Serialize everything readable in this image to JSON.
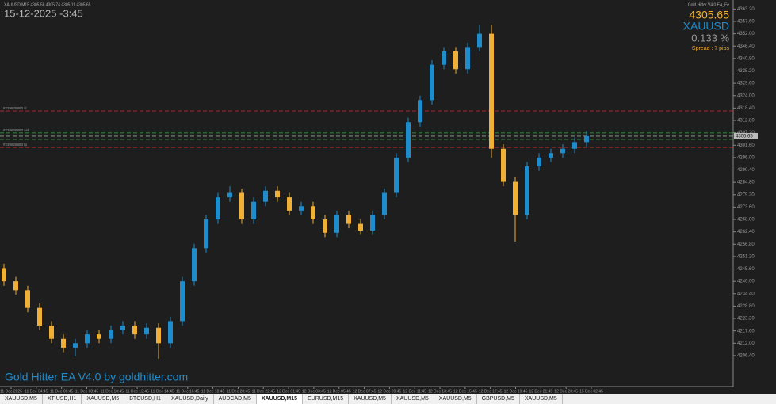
{
  "chart_data": {
    "type": "candlestick",
    "symbol_info": "XAUUSD,M15  4305.58 4305.74 4305.11 4305.65",
    "datetime": "15-12-2025 -3:45",
    "ea_name": "Gold Hitter V4.0 EA_Fe",
    "bid": 4305.65,
    "bid_label": "4305.65",
    "symbol": "XAUUSD",
    "change_pct": "0.133 %",
    "spread": "Spread : 7 pips",
    "watermark": "Gold Hitter EA V4.0 by goldhitter.com",
    "up_color": "#1f8ccc",
    "down_color": "#efb035",
    "ylim": [
      4192.4,
      4364.4
    ],
    "yticks": [
      {
        "value": 4206.4,
        "label": "4206.40"
      },
      {
        "value": 4212.0,
        "label": "4212.00"
      },
      {
        "value": 4217.6,
        "label": "4217.60"
      },
      {
        "value": 4223.2,
        "label": "4223.20"
      },
      {
        "value": 4228.8,
        "label": "4228.80"
      },
      {
        "value": 4234.4,
        "label": "4234.40"
      },
      {
        "value": 4240.0,
        "label": "4240.00"
      },
      {
        "value": 4245.6,
        "label": "4245.60"
      },
      {
        "value": 4251.2,
        "label": "4251.20"
      },
      {
        "value": 4256.8,
        "label": "4256.80"
      },
      {
        "value": 4262.4,
        "label": "4262.40"
      },
      {
        "value": 4268.0,
        "label": "4268.00"
      },
      {
        "value": 4273.6,
        "label": "4273.60"
      },
      {
        "value": 4279.2,
        "label": "4279.20"
      },
      {
        "value": 4284.8,
        "label": "4284.80"
      },
      {
        "value": 4290.4,
        "label": "4290.40"
      },
      {
        "value": 4296.0,
        "label": "4296.00"
      },
      {
        "value": 4301.6,
        "label": "4301.60"
      },
      {
        "value": 4307.2,
        "label": "4307.20"
      },
      {
        "value": 4312.8,
        "label": "4312.80"
      },
      {
        "value": 4318.4,
        "label": "4318.40"
      },
      {
        "value": 4324.0,
        "label": "4324.00"
      },
      {
        "value": 4329.6,
        "label": "4329.60"
      },
      {
        "value": 4335.2,
        "label": "4335.20"
      },
      {
        "value": 4340.8,
        "label": "4340.80"
      },
      {
        "value": 4346.4,
        "label": "4346.40"
      },
      {
        "value": 4352.0,
        "label": "4352.00"
      },
      {
        "value": 4357.6,
        "label": "4357.60"
      },
      {
        "value": 4363.2,
        "label": "4363.20"
      }
    ],
    "xaxis_labels": [
      "11 Dec 2025",
      "11 Dec 04:45",
      "11 Dec 06:45",
      "11 Dec 08:45",
      "11 Dec 10:45",
      "11 Dec 12:45",
      "11 Dec 14:45",
      "11 Dec 16:45",
      "11 Dec 18:45",
      "11 Dec 20:45",
      "11 Dec 22:45",
      "12 Dec 01:45",
      "12 Dec 03:45",
      "12 Dec 05:45",
      "12 Dec 07:45",
      "12 Dec 09:45",
      "12 Dec 11:45",
      "12 Dec 13:45",
      "12 Dec 15:45",
      "12 Dec 17:45",
      "12 Dec 19:45",
      "12 Dec 21:45",
      "12 Dec 23:45",
      "15 Dec 02:45"
    ],
    "price_lines": [
      {
        "value": 4317.1,
        "color": "#c8302c",
        "label": "#239628883 sl"
      },
      {
        "value": 4307.1,
        "color": "#3aa845",
        "label": "#239628883 sell"
      },
      {
        "value": 4305.65,
        "color": "#9aa89a"
      },
      {
        "value": 4304.2,
        "color": "#3aa845"
      },
      {
        "value": 4300.6,
        "color": "#c8302c",
        "label": "#239628883 tp"
      }
    ],
    "open": [
      4246,
      4240,
      4236,
      4228,
      4220,
      4214,
      4210,
      4212,
      4216,
      4214,
      4218,
      4220,
      4216,
      4219,
      4212,
      4222,
      4240,
      4255,
      4268,
      4278,
      4280,
      4268,
      4276,
      4281,
      4278,
      4272,
      4274,
      4268,
      4262,
      4270,
      4266,
      4263,
      4270,
      4280,
      4296,
      4312,
      4322,
      4338,
      4344,
      4336,
      4346,
      4352,
      4300,
      4285,
      4270,
      4292,
      4296,
      4298,
      4300,
      4303
    ],
    "high": [
      4248,
      4242,
      4238,
      4230,
      4222,
      4216,
      4214,
      4218,
      4218,
      4220,
      4222,
      4222,
      4221,
      4221,
      4224,
      4242,
      4257,
      4270,
      4280,
      4283,
      4282,
      4278,
      4283,
      4283,
      4280,
      4276,
      4276,
      4270,
      4272,
      4272,
      4268,
      4272,
      4282,
      4298,
      4314,
      4324,
      4340,
      4346,
      4346,
      4348,
      4356,
      4356,
      4302,
      4287,
      4294,
      4298,
      4300,
      4302,
      4305,
      4308
    ],
    "low": [
      4238,
      4234,
      4226,
      4218,
      4212,
      4208,
      4206,
      4210,
      4212,
      4212,
      4216,
      4214,
      4214,
      4205,
      4210,
      4220,
      4238,
      4253,
      4266,
      4276,
      4266,
      4266,
      4274,
      4276,
      4270,
      4270,
      4266,
      4260,
      4260,
      4264,
      4261,
      4261,
      4268,
      4278,
      4294,
      4310,
      4320,
      4336,
      4334,
      4334,
      4344,
      4296,
      4283,
      4258,
      4268,
      4290,
      4294,
      4296,
      4298,
      4301
    ],
    "close": [
      4240,
      4236,
      4228,
      4220,
      4214,
      4210,
      4212,
      4216,
      4214,
      4218,
      4220,
      4216,
      4219,
      4212,
      4222,
      4240,
      4255,
      4268,
      4278,
      4280,
      4268,
      4276,
      4281,
      4278,
      4272,
      4274,
      4268,
      4262,
      4270,
      4266,
      4263,
      4270,
      4280,
      4296,
      4312,
      4322,
      4338,
      4344,
      4336,
      4346,
      4352,
      4300,
      4285,
      4270,
      4292,
      4296,
      4298,
      4300,
      4303,
      4305.65
    ]
  },
  "tabs": [
    "XAUUSD,M5",
    "XTIUSD,H1",
    "XAUUSD,M5",
    "BTCUSD,H1",
    "XAUUSD,Daily",
    "AUDCAD,M5",
    "XAUUSD,M15",
    "EURUSD,M15",
    "XAUUSD,M5",
    "XAUUSD,M5",
    "XAUUSD,M5",
    "GBPUSD,M5",
    "XAUUSD,M5"
  ],
  "active_tab": 6
}
